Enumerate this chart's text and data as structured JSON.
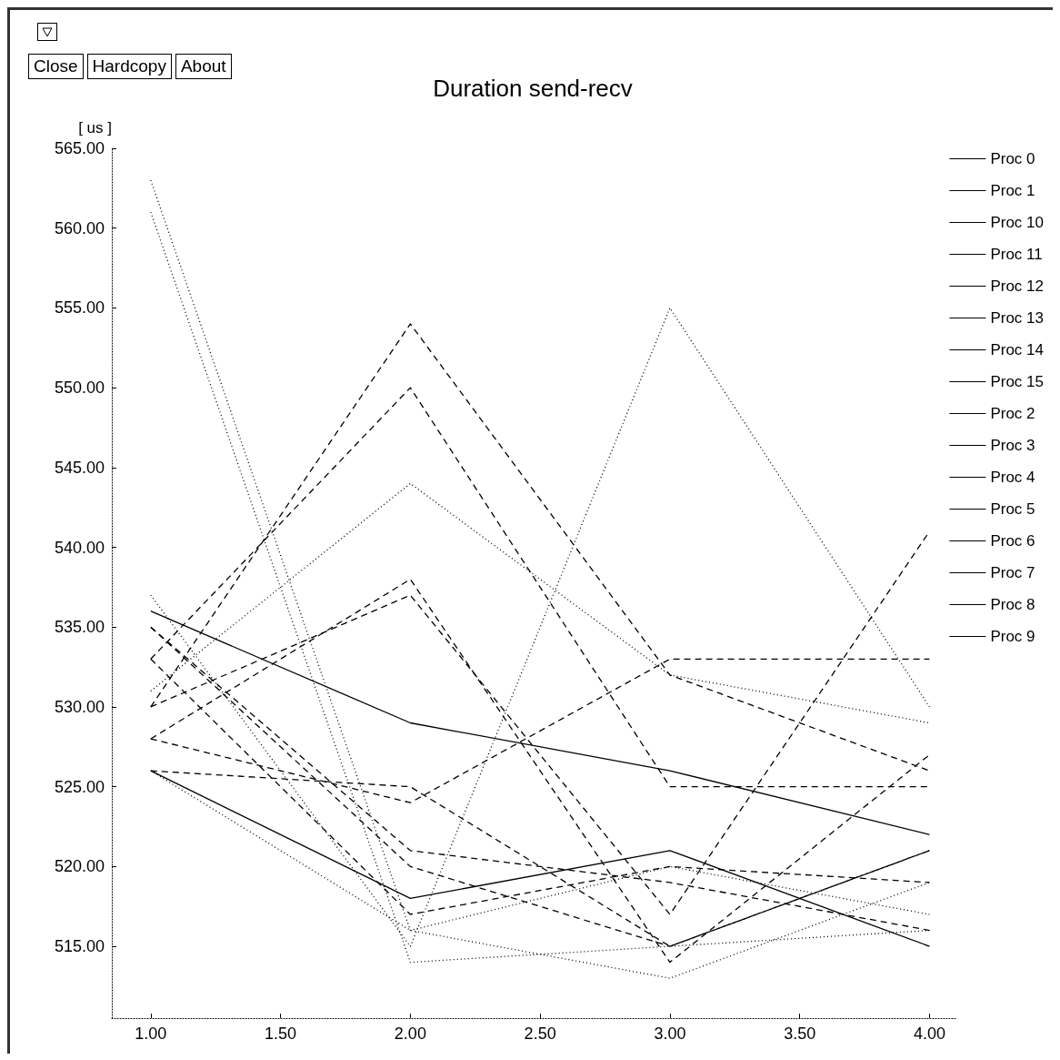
{
  "chart_data": {
    "type": "line",
    "title": "Duration send-recv",
    "ylabel": "[ us ]",
    "annotations": [
      "Close",
      "Hardcopy",
      "About"
    ],
    "x": [
      1,
      2,
      3,
      4
    ],
    "xlim": [
      0.85,
      4.1
    ],
    "xticks": [
      {
        "value": 1,
        "label": "1.00"
      },
      {
        "value": 1.5,
        "label": "1.50"
      },
      {
        "value": 2,
        "label": "2.00"
      },
      {
        "value": 2.5,
        "label": "2.50"
      },
      {
        "value": 3,
        "label": "3.00"
      },
      {
        "value": 3.5,
        "label": "3.50"
      },
      {
        "value": 4,
        "label": "4.00"
      }
    ],
    "ylim": [
      510.5,
      565
    ],
    "yticks": [
      {
        "value": 515,
        "label": "515.00"
      },
      {
        "value": 520,
        "label": "520.00"
      },
      {
        "value": 525,
        "label": "525.00"
      },
      {
        "value": 530,
        "label": "530.00"
      },
      {
        "value": 535,
        "label": "535.00"
      },
      {
        "value": 540,
        "label": "540.00"
      },
      {
        "value": 545,
        "label": "545.00"
      },
      {
        "value": 550,
        "label": "550.00"
      },
      {
        "value": 555,
        "label": "555.00"
      },
      {
        "value": 560,
        "label": "560.00"
      },
      {
        "value": 565,
        "label": "565.00"
      }
    ],
    "grid": false,
    "legend": "right",
    "series": [
      {
        "name": "Proc 0",
        "color": "#000000",
        "line_style": "solid",
        "values": [
          536,
          529,
          526,
          522
        ]
      },
      {
        "name": "Proc 1",
        "color": "#000000",
        "line_style": "dotted",
        "values": [
          563,
          516,
          520,
          517
        ]
      },
      {
        "name": "Proc 10",
        "color": "#000000",
        "line_style": "dashed",
        "values": [
          530,
          554,
          532,
          526
        ]
      },
      {
        "name": "Proc 11",
        "color": "#000000",
        "line_style": "dotted",
        "values": [
          561,
          514,
          515,
          516
        ]
      },
      {
        "name": "Proc 12",
        "color": "#000000",
        "line_style": "dashed",
        "values": [
          528,
          524,
          533,
          533
        ]
      },
      {
        "name": "Proc 13",
        "color": "#000000",
        "line_style": "dashed",
        "values": [
          533,
          550,
          525,
          525
        ]
      },
      {
        "name": "Proc 14",
        "color": "#000000",
        "line_style": "dashed",
        "values": [
          526,
          525,
          515,
          521
        ]
      },
      {
        "name": "Proc 15",
        "color": "#000000",
        "line_style": "dashed",
        "values": [
          530,
          537,
          517,
          541
        ]
      },
      {
        "name": "Proc 2",
        "color": "#000000",
        "line_style": "solid",
        "values": [
          526,
          518,
          521,
          515
        ]
      },
      {
        "name": "Proc 3",
        "color": "#000000",
        "line_style": "dotted",
        "values": [
          531,
          544,
          532,
          529
        ]
      },
      {
        "name": "Proc 4",
        "color": "#000000",
        "line_style": "dashed",
        "values": [
          535,
          521,
          519,
          516
        ]
      },
      {
        "name": "Proc 5",
        "color": "#000000",
        "line_style": "dotted",
        "values": [
          537,
          515,
          555,
          530
        ]
      },
      {
        "name": "Proc 6",
        "color": "#000000",
        "line_style": "dashed",
        "values": [
          528,
          538,
          514,
          527
        ]
      },
      {
        "name": "Proc 7",
        "color": "#000000",
        "line_style": "dashed",
        "values": [
          533,
          517,
          520,
          519
        ]
      },
      {
        "name": "Proc 8",
        "color": "#000000",
        "line_style": "dashed",
        "values": [
          535,
          520,
          515,
          521
        ]
      },
      {
        "name": "Proc 9",
        "color": "#000000",
        "line_style": "dotted",
        "values": [
          526,
          516,
          513,
          519
        ]
      }
    ]
  }
}
